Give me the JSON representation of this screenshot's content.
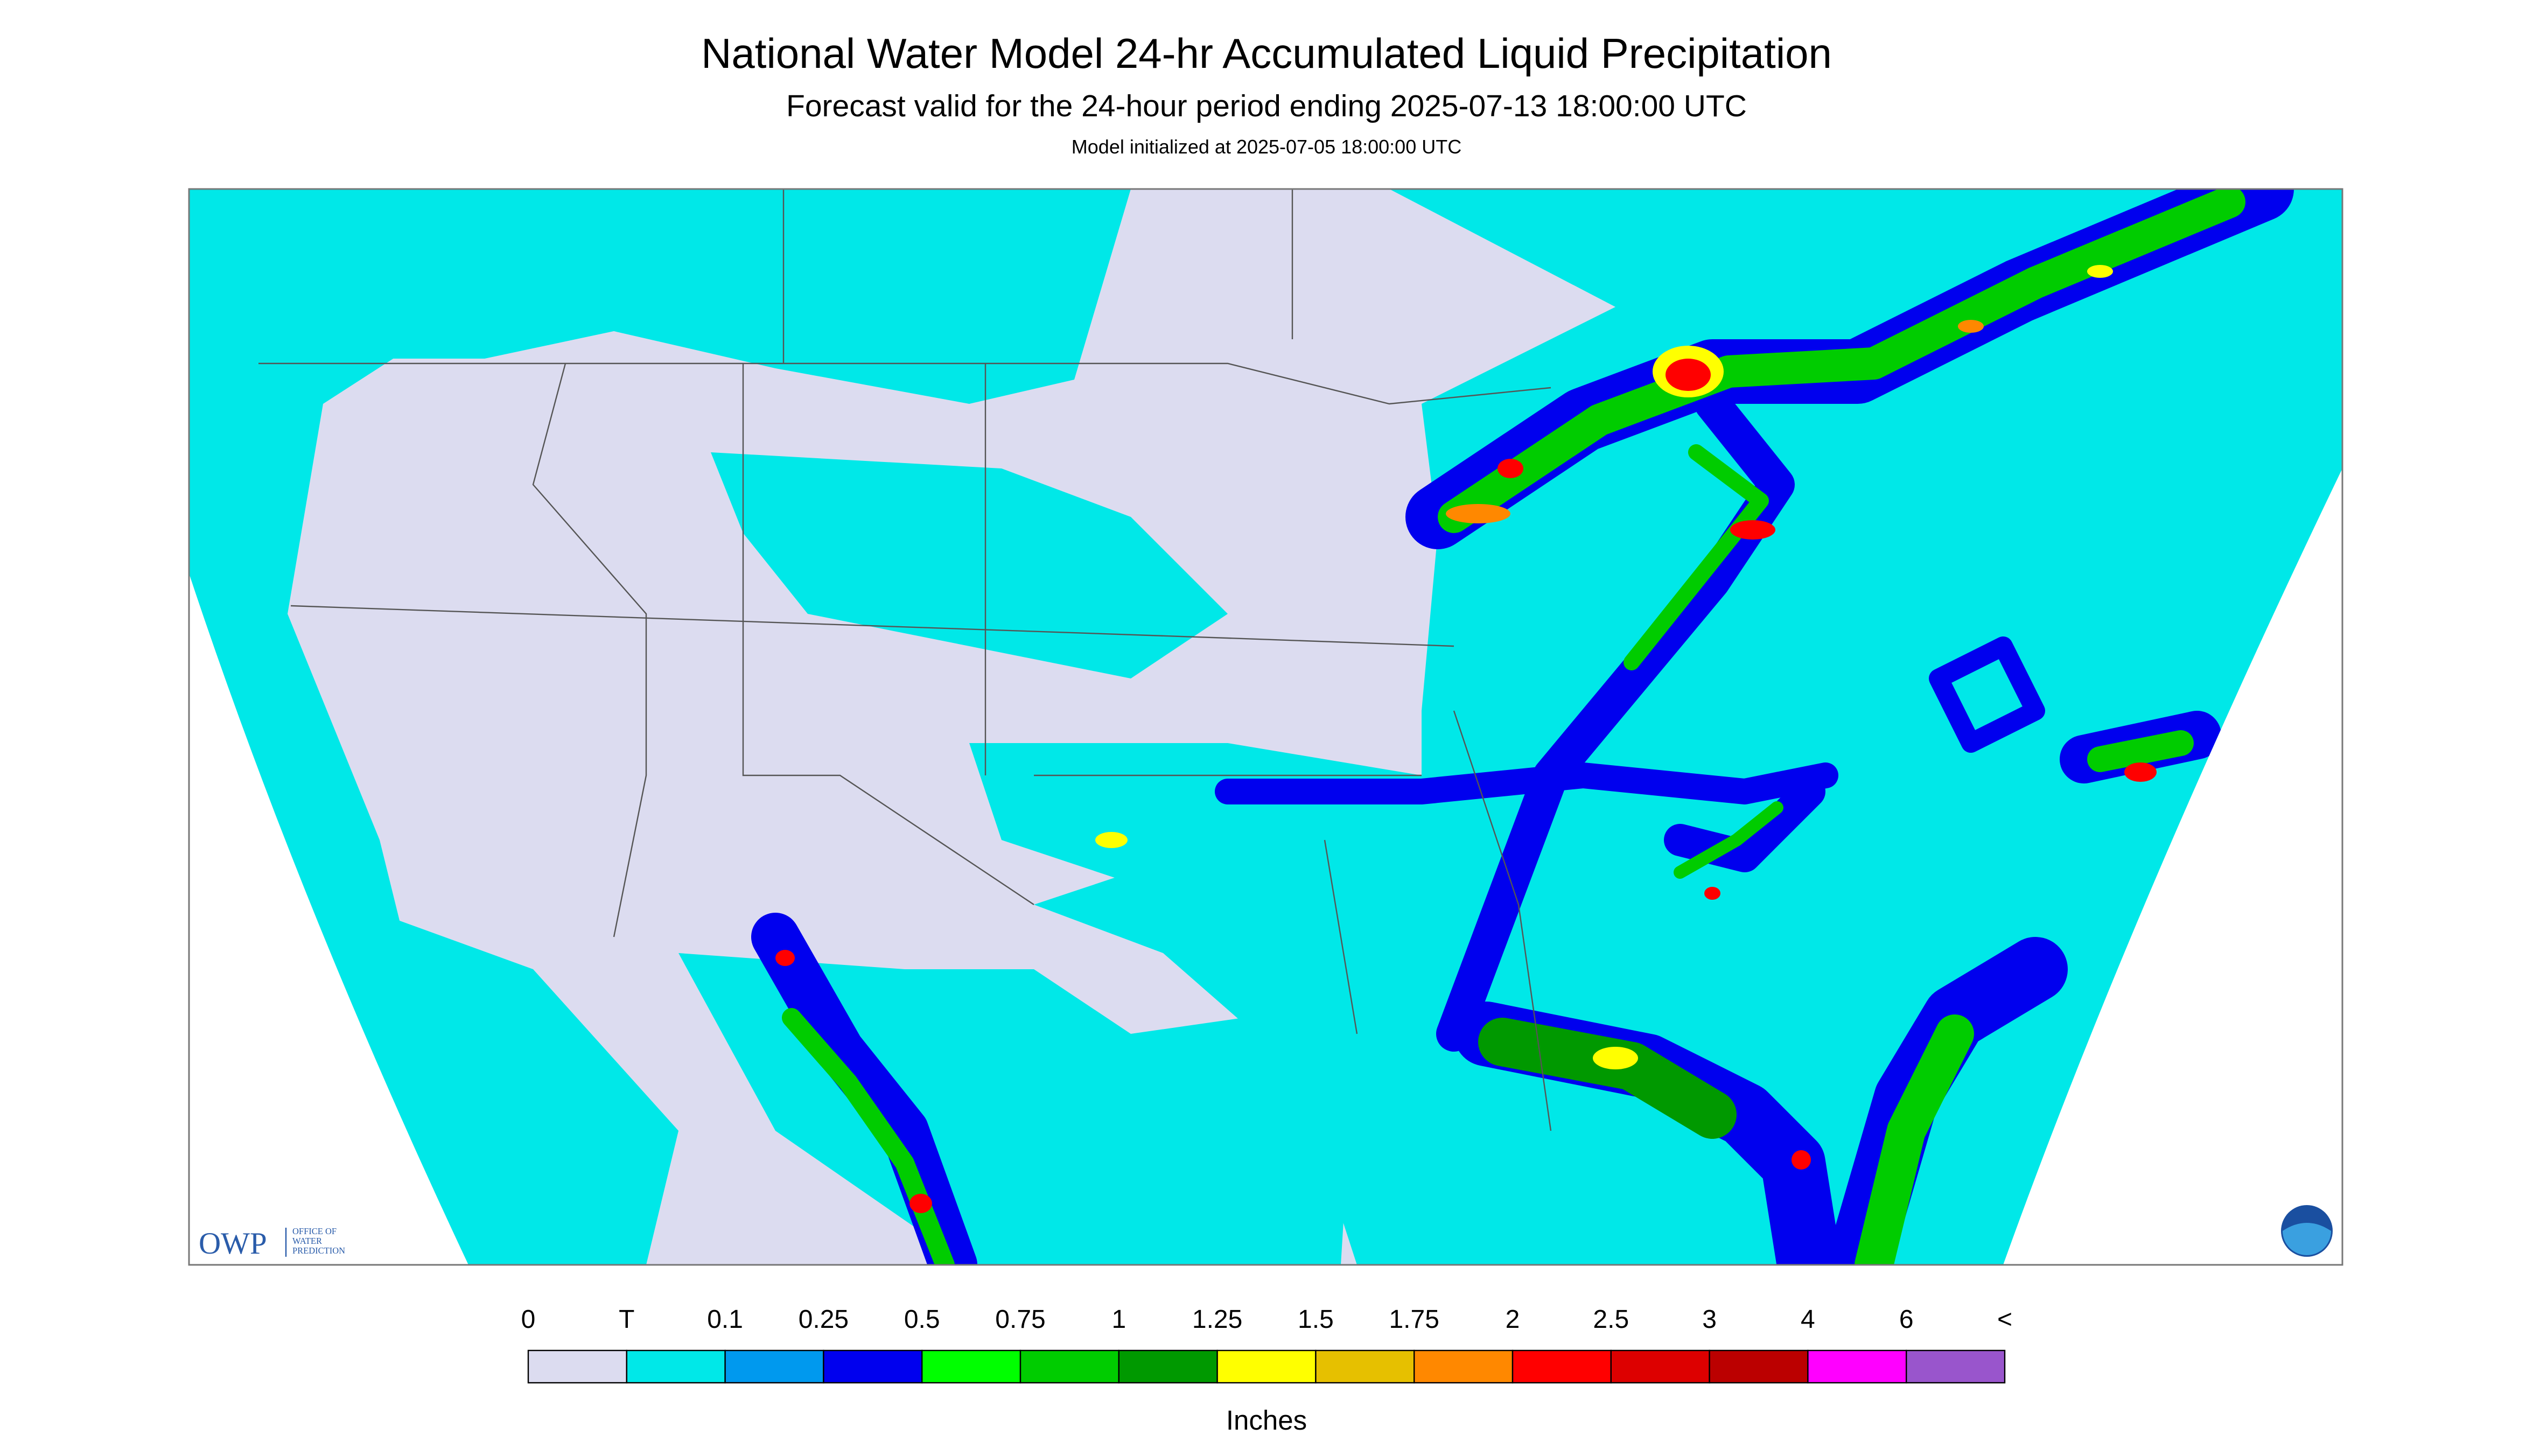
{
  "header": {
    "title": "National Water Model 24-hr Accumulated Liquid Precipitation",
    "subtitle": "Forecast valid for the 24-hour period ending 2025-07-13 18:00:00 UTC",
    "initialized": "Model initialized at 2025-07-05 18:00:00 UTC"
  },
  "legend": {
    "labels": [
      "0",
      "T",
      "0.1",
      "0.25",
      "0.5",
      "0.75",
      "1",
      "1.25",
      "1.5",
      "1.75",
      "2",
      "2.5",
      "3",
      "4",
      "6",
      "<"
    ],
    "colors": [
      "#dcdcf0",
      "#00e8e8",
      "#0099ee",
      "#0000ee",
      "#00ff00",
      "#00cc00",
      "#009900",
      "#ffff00",
      "#e6c000",
      "#ff8800",
      "#ff0000",
      "#dd0000",
      "#bb0000",
      "#ff00ff",
      "#9955cc"
    ],
    "units": "Inches"
  },
  "logos": {
    "owp": "OWP",
    "owp_name": [
      "OFFICE OF",
      "WATER",
      "PREDICTION"
    ]
  }
}
